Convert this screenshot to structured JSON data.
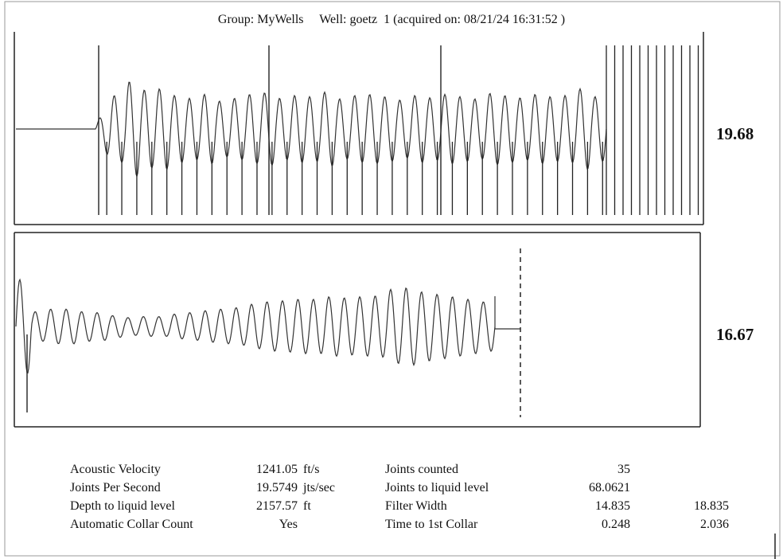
{
  "header": {
    "group_label": "Group: MyWells",
    "well_label": "Well: goetz  1 (acquired on: 08/21/24 16:31:52 )"
  },
  "chart_data": [
    {
      "type": "line",
      "name": "upper-trace",
      "scale_label": "19.68",
      "baseline_until_x": 108,
      "wave_peaks": [
        0.55,
        0.6,
        0.85,
        0.7,
        0.72,
        0.6,
        0.55,
        0.62,
        0.5,
        0.55,
        0.62,
        0.65,
        0.55,
        0.6,
        0.58,
        0.66,
        0.54,
        0.6,
        0.62,
        0.58,
        0.52,
        0.6,
        0.56,
        0.62,
        0.58,
        0.54,
        0.64,
        0.6,
        0.56,
        0.62,
        0.58,
        0.6,
        0.72,
        0.58
      ],
      "collar_markers": 35
    },
    {
      "type": "line",
      "name": "lower-trace",
      "scale_label": "16.67",
      "wave_amplitudes": [
        0.95,
        0.3,
        0.35,
        0.35,
        0.3,
        0.28,
        0.22,
        0.18,
        0.2,
        0.2,
        0.25,
        0.28,
        0.32,
        0.35,
        0.38,
        0.45,
        0.5,
        0.52,
        0.55,
        0.55,
        0.6,
        0.58,
        0.6,
        0.62,
        0.75,
        0.78,
        0.7,
        0.65,
        0.6,
        0.55,
        0.5
      ]
    }
  ],
  "results": {
    "left": [
      {
        "label": "Acoustic Velocity",
        "value": "1241.05",
        "unit": "ft/s"
      },
      {
        "label": "Joints Per Second",
        "value": "19.5749",
        "unit": "jts/sec"
      },
      {
        "label": "Depth to liquid level",
        "value": "2157.57",
        "unit": "ft"
      },
      {
        "label": "Automatic Collar Count",
        "value": "Yes",
        "unit": ""
      }
    ],
    "right": [
      {
        "label": "Joints counted",
        "value": "35",
        "value2": ""
      },
      {
        "label": "Joints to liquid level",
        "value": "68.0621",
        "value2": ""
      },
      {
        "label": "Filter Width",
        "value": "14.835",
        "value2": "18.835"
      },
      {
        "label": "Time to 1st Collar",
        "value": "0.248",
        "value2": "2.036"
      }
    ]
  }
}
